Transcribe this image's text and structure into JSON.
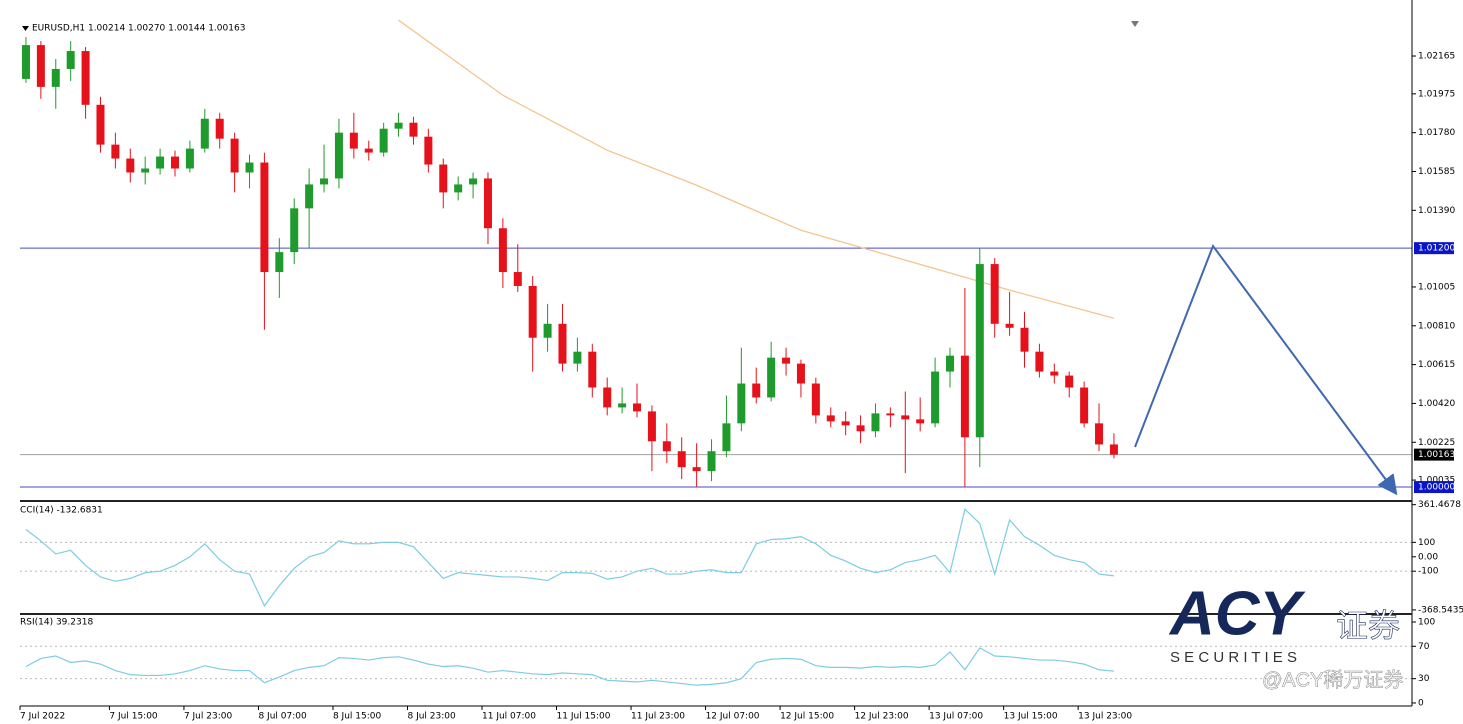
{
  "chart_data": [
    {
      "type": "candlestick",
      "title": "EURUSD,H1 1.00214 1.00270 1.00144 1.00163",
      "up_color": "#1f9a2c",
      "down_color": "#e5121c",
      "ylim": [
        0.99935,
        1.02356
      ],
      "yticks": [
        1.02165,
        1.01975,
        {
          "value": 1.0178,
          "label": "1.01780"
        },
        1.01585,
        {
          "value": 1.0139,
          "label": "1.01390"
        },
        1.01005,
        {
          "value": 1.0081,
          "label": "1.00810"
        },
        1.00615,
        {
          "value": 1.0042,
          "label": "1.00420"
        },
        1.00225,
        1.00035
      ],
      "xlim": [
        -0.4,
        93
      ],
      "xticks": [
        {
          "value": -0.4,
          "label": "7 Jul 2022"
        },
        {
          "value": 5.6,
          "label": "7 Jul 15:00"
        },
        {
          "value": 10.6,
          "label": "7 Jul 23:00"
        },
        {
          "value": 15.6,
          "label": "8 Jul 07:00"
        },
        {
          "value": 20.6,
          "label": "8 Jul 15:00"
        },
        {
          "value": 25.6,
          "label": "8 Jul 23:00"
        },
        {
          "value": 30.6,
          "label": "11 Jul 07:00"
        },
        {
          "value": 35.6,
          "label": "11 Jul 15:00"
        },
        {
          "value": 40.6,
          "label": "11 Jul 23:00"
        },
        {
          "value": 45.6,
          "label": "12 Jul 07:00"
        },
        {
          "value": 50.6,
          "label": "12 Jul 15:00"
        },
        {
          "value": 55.6,
          "label": "12 Jul 23:00"
        },
        {
          "value": 60.6,
          "label": "13 Jul 07:00"
        },
        {
          "value": 65.6,
          "label": "13 Jul 15:00"
        },
        {
          "value": 70.6,
          "label": "13 Jul 23:00"
        }
      ],
      "ohlc": [
        [
          1.0205,
          1.0226,
          1.0203,
          1.0222
        ],
        [
          1.0222,
          1.0224,
          1.0195,
          1.0201
        ],
        [
          1.0201,
          1.0215,
          1.019,
          1.021
        ],
        [
          1.021,
          1.0224,
          1.0204,
          1.0219
        ],
        [
          1.0219,
          1.0221,
          1.0185,
          1.0192
        ],
        [
          1.0192,
          1.0196,
          1.0168,
          1.0172
        ],
        [
          1.0172,
          1.0178,
          1.016,
          1.0165
        ],
        [
          1.0165,
          1.017,
          1.0153,
          1.0158
        ],
        [
          1.0158,
          1.0166,
          1.0152,
          1.016
        ],
        [
          1.016,
          1.017,
          1.0157,
          1.0166
        ],
        [
          1.0166,
          1.0169,
          1.0156,
          1.016
        ],
        [
          1.016,
          1.0174,
          1.0158,
          1.017
        ],
        [
          1.017,
          1.019,
          1.0168,
          1.0185
        ],
        [
          1.0185,
          1.0188,
          1.017,
          1.0175
        ],
        [
          1.0175,
          1.0178,
          1.0148,
          1.0158
        ],
        [
          1.0158,
          1.0167,
          1.015,
          1.0163
        ],
        [
          1.0163,
          1.0168,
          1.0079,
          1.0108
        ],
        [
          1.0108,
          1.0125,
          1.0095,
          1.0118
        ],
        [
          1.0118,
          1.0145,
          1.0112,
          1.014
        ],
        [
          1.014,
          1.016,
          1.012,
          1.0152
        ],
        [
          1.0152,
          1.0172,
          1.0148,
          1.0155
        ],
        [
          1.0155,
          1.0185,
          1.015,
          1.0178
        ],
        [
          1.0178,
          1.0188,
          1.0165,
          1.017
        ],
        [
          1.017,
          1.0174,
          1.0164,
          1.0168
        ],
        [
          1.0168,
          1.0183,
          1.0166,
          1.018
        ],
        [
          1.018,
          1.0188,
          1.0176,
          1.0183
        ],
        [
          1.0183,
          1.0186,
          1.0172,
          1.0176
        ],
        [
          1.0176,
          1.018,
          1.0158,
          1.0162
        ],
        [
          1.0162,
          1.0165,
          1.014,
          1.0148
        ],
        [
          1.0148,
          1.0156,
          1.0144,
          1.0152
        ],
        [
          1.0152,
          1.0158,
          1.0145,
          1.0155
        ],
        [
          1.0155,
          1.0158,
          1.0122,
          1.013
        ],
        [
          1.013,
          1.0135,
          1.01,
          1.0108
        ],
        [
          1.0108,
          1.0122,
          1.0098,
          1.0101
        ],
        [
          1.0101,
          1.0106,
          1.0058,
          1.0075
        ],
        [
          1.0075,
          1.0092,
          1.0068,
          1.0082
        ],
        [
          1.0082,
          1.0092,
          1.0058,
          1.0062
        ],
        [
          1.0062,
          1.0075,
          1.0058,
          1.0068
        ],
        [
          1.0068,
          1.0072,
          1.0045,
          1.005
        ],
        [
          1.005,
          1.0055,
          1.0036,
          1.004
        ],
        [
          1.004,
          1.005,
          1.0037,
          1.0042
        ],
        [
          1.0042,
          1.0052,
          1.0035,
          1.0038
        ],
        [
          1.0038,
          1.0041,
          1.0008,
          1.0023
        ],
        [
          1.0023,
          1.0032,
          1.0012,
          1.0018
        ],
        [
          1.0018,
          1.0025,
          1.0004,
          1.001
        ],
        [
          1.001,
          1.0022,
          1.0,
          1.0008
        ],
        [
          1.0008,
          1.0024,
          1.0003,
          1.0018
        ],
        [
          1.0018,
          1.0046,
          1.0015,
          1.0032
        ],
        [
          1.0032,
          1.007,
          1.0028,
          1.0052
        ],
        [
          1.0052,
          1.006,
          1.0042,
          1.0045
        ],
        [
          1.0045,
          1.0073,
          1.0043,
          1.0065
        ],
        [
          1.0065,
          1.007,
          1.0056,
          1.0062
        ],
        [
          1.0062,
          1.0064,
          1.0045,
          1.0052
        ],
        [
          1.0052,
          1.0055,
          1.0032,
          1.0036
        ],
        [
          1.0036,
          1.004,
          1.003,
          1.0033
        ],
        [
          1.0033,
          1.0038,
          1.0026,
          1.0031
        ],
        [
          1.0031,
          1.0036,
          1.0022,
          1.0028
        ],
        [
          1.0028,
          1.0042,
          1.0025,
          1.0037
        ],
        [
          1.0037,
          1.004,
          1.003,
          1.0036
        ],
        [
          1.0036,
          1.0048,
          1.0007,
          1.0034
        ],
        [
          1.0034,
          1.0045,
          1.0028,
          1.0032
        ],
        [
          1.0032,
          1.0065,
          1.003,
          1.0058
        ],
        [
          1.0058,
          1.007,
          1.005,
          1.0066
        ],
        [
          1.0066,
          1.01,
          1.0,
          1.0025
        ],
        [
          1.0025,
          1.012,
          1.001,
          1.0112
        ],
        [
          1.0112,
          1.0115,
          1.0075,
          1.0082
        ],
        [
          1.0082,
          1.0098,
          1.0076,
          1.008
        ],
        [
          1.008,
          1.0088,
          1.006,
          1.0068
        ],
        [
          1.0068,
          1.0072,
          1.0055,
          1.0058
        ],
        [
          1.0058,
          1.0062,
          1.0052,
          1.0056
        ],
        [
          1.0056,
          1.0058,
          1.0045,
          1.005
        ],
        [
          1.005,
          1.0053,
          1.003,
          1.0032
        ],
        [
          1.0032,
          1.0042,
          1.0018,
          1.00214
        ],
        [
          1.00214,
          1.0027,
          1.00144,
          1.00163
        ]
      ],
      "ma": {
        "color": "#f3c58e",
        "x": [
          25,
          32,
          39,
          45,
          52,
          59,
          66,
          73
        ],
        "values": [
          1.02345,
          1.01968,
          1.01692,
          1.01516,
          1.0129,
          1.0114,
          1.00989,
          1.00848
        ]
      },
      "hlines": [
        {
          "value": 1.012,
          "label": "1.01200",
          "color": "#4a4ac8",
          "box": "#0a14c8"
        },
        {
          "value": 1.00163,
          "color": "#a0a0a0",
          "box": "#000000"
        },
        {
          "value": 1.0,
          "label": "1.00000",
          "color": "#4a4ac8",
          "box": "#0a14c8"
        }
      ]
    },
    {
      "type": "line",
      "title": "CCI(14) -132.6831",
      "color": "#7ccde0",
      "ylim": [
        -390,
        380
      ],
      "yticks": [
        361.4678,
        100,
        {
          "value": 0,
          "label": "0.00"
        },
        -100,
        -368.5435
      ],
      "levels": [
        100,
        -100
      ],
      "values": [
        190,
        110,
        20,
        45,
        -60,
        -140,
        -170,
        -150,
        -110,
        -100,
        -60,
        0,
        90,
        -20,
        -100,
        -120,
        -340,
        -200,
        -80,
        0,
        30,
        110,
        90,
        90,
        100,
        100,
        70,
        -40,
        -150,
        -110,
        -120,
        -130,
        -140,
        -140,
        -150,
        -165,
        -110,
        -110,
        -115,
        -155,
        -140,
        -100,
        -80,
        -120,
        -120,
        -100,
        -90,
        -110,
        -110,
        90,
        120,
        125,
        140,
        90,
        10,
        -30,
        -80,
        -110,
        -90,
        -40,
        -20,
        10,
        -110,
        330,
        230,
        -120,
        255,
        140,
        80,
        10,
        -20,
        -40,
        -120,
        -132.6831
      ]
    },
    {
      "type": "line",
      "title": "RSI(14) 39.2318",
      "color": "#7ccde0",
      "ylim": [
        -2.5,
        107.4
      ],
      "yticks": [
        100,
        70,
        30,
        0
      ],
      "levels": [
        70,
        30
      ],
      "values": [
        45,
        55,
        58,
        50,
        52,
        48,
        40,
        35,
        34,
        34,
        36,
        40,
        46,
        42,
        40,
        40,
        25,
        32,
        40,
        44,
        46,
        56,
        55,
        53,
        56,
        57,
        53,
        48,
        45,
        46,
        43,
        38,
        40,
        38,
        36,
        35,
        37,
        36,
        35,
        28,
        27,
        26,
        28,
        26,
        24,
        22,
        23,
        25,
        30,
        50,
        54,
        55,
        54,
        46,
        44,
        44,
        43,
        45,
        44,
        45,
        44,
        47,
        63,
        41,
        68,
        58,
        57,
        55,
        53,
        53,
        51,
        48,
        41,
        39.2318
      ]
    }
  ],
  "watermark": {
    "brand": "ACY",
    "cn": "证券",
    "sub": "S E C U R I T I E S",
    "credit": "@ACY稀万证券"
  }
}
